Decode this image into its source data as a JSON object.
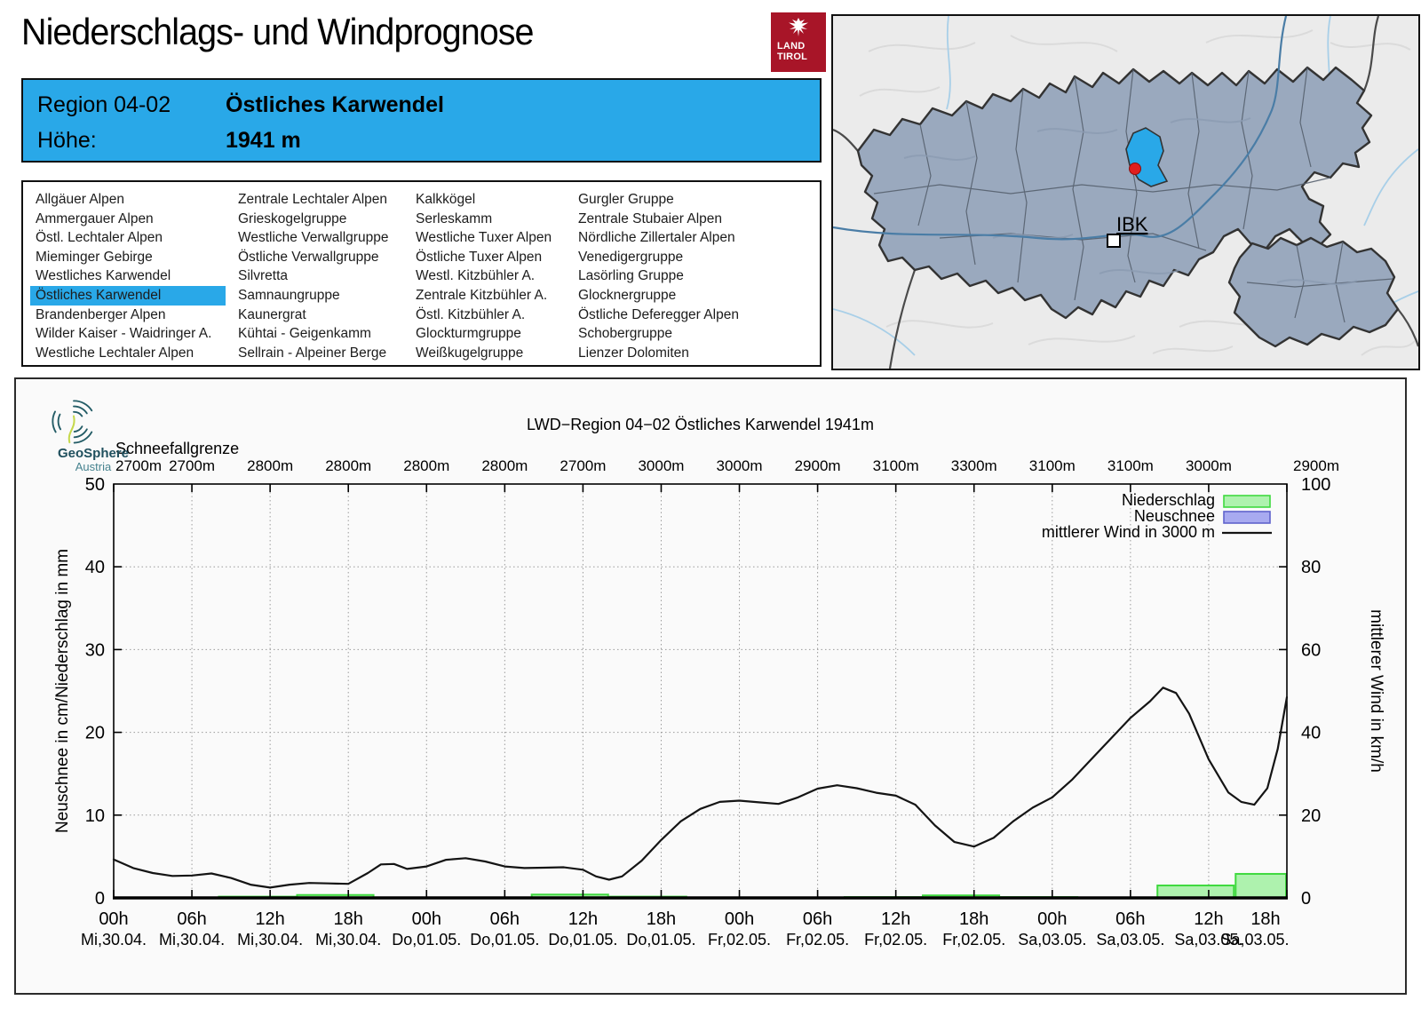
{
  "header": {
    "title": "Niederschlags- und Windprognose",
    "logo_line1": "LAND",
    "logo_line2": "TIROL"
  },
  "info_box": {
    "region_label": "Region 04-02",
    "region_name": "Östliches Karwendel",
    "altitude_label": "Höhe:",
    "altitude_value": "1941 m"
  },
  "region_list": {
    "selected": "Östliches Karwendel",
    "columns": [
      [
        "Allgäuer Alpen",
        "Ammergauer Alpen",
        "Östl. Lechtaler Alpen",
        "Mieminger Gebirge",
        "Westliches Karwendel",
        "Östliches Karwendel",
        "Brandenberger Alpen",
        "Wilder Kaiser - Waidringer A.",
        "Westliche Lechtaler Alpen"
      ],
      [
        "Zentrale Lechtaler Alpen",
        "Grieskogelgruppe",
        "Westliche Verwallgruppe",
        "Östliche Verwallgruppe",
        "Silvretta",
        "Samnaungruppe",
        "Kaunergrat",
        "Kühtai - Geigenkamm",
        "Sellrain - Alpeiner Berge"
      ],
      [
        "Kalkkögel",
        "Serleskamm",
        "Westliche Tuxer Alpen",
        "Östliche Tuxer Alpen",
        "Westl. Kitzbühler A.",
        "Zentrale Kitzbühler A.",
        "Östl. Kitzbühler A.",
        "Glockturmgruppe",
        "Weißkugelgruppe"
      ],
      [
        "Gurgler Gruppe",
        "Zentrale Stubaier Alpen",
        "Nördliche Zillertaler Alpen",
        "Venedigergruppe",
        "Lasörling Gruppe",
        "Glocknergruppe",
        "Östliche Deferegger Alpen",
        "Schobergruppe",
        "Lienzer Dolomiten"
      ]
    ]
  },
  "map": {
    "city_label": "IBK"
  },
  "chart": {
    "source": {
      "name": "GeoSphere",
      "sub": "Austria"
    }
  },
  "chart_data": {
    "type": "line+bar",
    "title": "LWD−Region 04−02 Östliches Karwendel 1941m",
    "snowline": {
      "label": "Schneefallgrenze",
      "values": [
        "2700m",
        "2700m",
        "2800m",
        "2800m",
        "2800m",
        "2800m",
        "2700m",
        "3000m",
        "3000m",
        "2900m",
        "3100m",
        "3300m",
        "3100m",
        "3100m",
        "3000m",
        "2900m"
      ]
    },
    "x_range_hours": [
      0,
      90
    ],
    "x_tick_step_hours": 6,
    "x_ticks": [
      {
        "time": "00h",
        "date": "Mi,30.04."
      },
      {
        "time": "06h",
        "date": "Mi,30.04."
      },
      {
        "time": "12h",
        "date": "Mi,30.04."
      },
      {
        "time": "18h",
        "date": "Mi,30.04."
      },
      {
        "time": "00h",
        "date": "Do,01.05."
      },
      {
        "time": "06h",
        "date": "Do,01.05."
      },
      {
        "time": "12h",
        "date": "Do,01.05."
      },
      {
        "time": "18h",
        "date": "Do,01.05."
      },
      {
        "time": "00h",
        "date": "Fr,02.05."
      },
      {
        "time": "06h",
        "date": "Fr,02.05."
      },
      {
        "time": "12h",
        "date": "Fr,02.05."
      },
      {
        "time": "18h",
        "date": "Fr,02.05."
      },
      {
        "time": "00h",
        "date": "Sa,03.05."
      },
      {
        "time": "06h",
        "date": "Sa,03.05."
      },
      {
        "time": "12h",
        "date": "Sa,03.05."
      },
      {
        "time": "18h",
        "date": "Sa,03.05."
      }
    ],
    "y_left": {
      "label": "Neuschnee in cm/Niederschlag in mm",
      "ticks": [
        0,
        10,
        20,
        30,
        40,
        50
      ],
      "ylim": [
        0,
        50
      ],
      "grid": true
    },
    "y_right": {
      "label": "mittlerer Wind in km/h",
      "ticks": [
        0,
        20,
        40,
        60,
        80,
        100
      ],
      "ylim": [
        0,
        100
      ]
    },
    "legend": [
      {
        "label": "Niederschlag",
        "swatch": "green-bar"
      },
      {
        "label": "Neuschnee",
        "swatch": "blue-bar"
      },
      {
        "label": "mittlerer Wind in 3000 m",
        "swatch": "black-line"
      }
    ],
    "series": [
      {
        "name": "Niederschlag",
        "type": "bar",
        "unit": "mm",
        "bars": [
          {
            "from_h": 8,
            "to_h": 14,
            "value": 0.15
          },
          {
            "from_h": 14,
            "to_h": 20,
            "value": 0.35
          },
          {
            "from_h": 32,
            "to_h": 38,
            "value": 0.4
          },
          {
            "from_h": 38,
            "to_h": 44,
            "value": 0.15
          },
          {
            "from_h": 56,
            "to_h": 62,
            "value": 0.1
          },
          {
            "from_h": 62,
            "to_h": 68,
            "value": 0.3
          },
          {
            "from_h": 68,
            "to_h": 74,
            "value": 0.1
          },
          {
            "from_h": 80,
            "to_h": 86,
            "value": 1.5
          },
          {
            "from_h": 86,
            "to_h": 90,
            "value": 2.9
          }
        ]
      },
      {
        "name": "Neuschnee",
        "type": "bar",
        "unit": "cm",
        "bars": []
      },
      {
        "name": "mittlerer Wind in 3000 m",
        "type": "line",
        "unit": "km/h",
        "points": [
          [
            0,
            9.3
          ],
          [
            1.5,
            7.2
          ],
          [
            3,
            6
          ],
          [
            4.5,
            5.3
          ],
          [
            6,
            5.4
          ],
          [
            7.5,
            5.9
          ],
          [
            9,
            4.8
          ],
          [
            10.5,
            3.2
          ],
          [
            12,
            2.5
          ],
          [
            13.5,
            3.2
          ],
          [
            15,
            3.6
          ],
          [
            16.5,
            3.5
          ],
          [
            18,
            3.4
          ],
          [
            19.5,
            6
          ],
          [
            20.5,
            8.1
          ],
          [
            21.5,
            8.2
          ],
          [
            22.5,
            7
          ],
          [
            24,
            7.6
          ],
          [
            25.5,
            9.2
          ],
          [
            27,
            9.6
          ],
          [
            28.5,
            8.8
          ],
          [
            30,
            7.6
          ],
          [
            31.5,
            7.2
          ],
          [
            33,
            7.3
          ],
          [
            34.5,
            7.4
          ],
          [
            36,
            6.8
          ],
          [
            37,
            5.2
          ],
          [
            38,
            4.4
          ],
          [
            39,
            5.2
          ],
          [
            40.5,
            9
          ],
          [
            42,
            14
          ],
          [
            43.5,
            18.5
          ],
          [
            45,
            21.5
          ],
          [
            46.5,
            23.2
          ],
          [
            48,
            23.5
          ],
          [
            49.5,
            23.1
          ],
          [
            51,
            22.7
          ],
          [
            52.5,
            24.3
          ],
          [
            54,
            26.4
          ],
          [
            55.5,
            27.2
          ],
          [
            57,
            26.5
          ],
          [
            58.5,
            25.4
          ],
          [
            60,
            24.7
          ],
          [
            61.5,
            22.5
          ],
          [
            63,
            17.5
          ],
          [
            64.5,
            13.5
          ],
          [
            66,
            12.4
          ],
          [
            67.5,
            14.5
          ],
          [
            69,
            18.5
          ],
          [
            70.5,
            21.8
          ],
          [
            72,
            24.3
          ],
          [
            73.5,
            28.5
          ],
          [
            75,
            33.5
          ],
          [
            76.5,
            38.5
          ],
          [
            78,
            43.5
          ],
          [
            79.5,
            47.5
          ],
          [
            80.5,
            50.8
          ],
          [
            81.5,
            49.5
          ],
          [
            82.5,
            44.5
          ],
          [
            84,
            33.5
          ],
          [
            85.5,
            25.5
          ],
          [
            86.5,
            23.2
          ],
          [
            87.5,
            22.5
          ],
          [
            88.5,
            26.5
          ],
          [
            89.3,
            36
          ],
          [
            90,
            48.5
          ]
        ]
      }
    ]
  },
  "colors": {
    "accent_blue": "#29a8e8",
    "land_tirol_red": "#a81528",
    "precip_fill": "#aef2ae",
    "precip_stroke": "#3fd93f",
    "snow_fill": "#a8aaf0",
    "snow_stroke": "#5f63cc",
    "wind_line": "#141414",
    "map_region": "#9aa9be",
    "map_highlight": "#29a8e8"
  }
}
